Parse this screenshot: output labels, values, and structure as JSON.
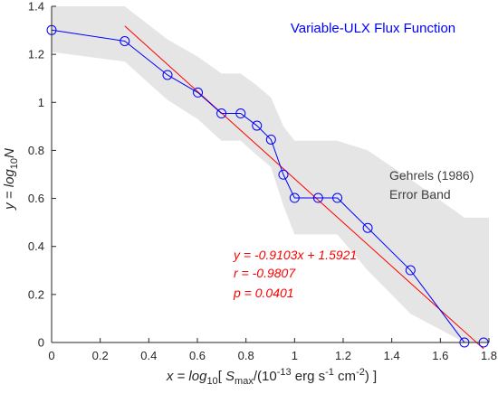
{
  "chart_data": {
    "type": "line",
    "title": "Variable-ULX Flux Function",
    "xlabel": {
      "prefix": "x = log",
      "prefix_sub": "10",
      "bracket_open": "[ ",
      "s": "S",
      "s_sub": "max",
      "mid": "/(10",
      "exp1": "-13",
      "mid2": " erg s",
      "exp2": "-1",
      "mid3": " cm",
      "exp3": "-2",
      "close": ") ]"
    },
    "ylabel": {
      "prefix": "y = log",
      "prefix_sub": "10",
      "var": "N"
    },
    "xlim": [
      0,
      1.8
    ],
    "ylim": [
      0,
      1.4
    ],
    "xticks": [
      0,
      0.2,
      0.4,
      0.6,
      0.8,
      1,
      1.2,
      1.4,
      1.6,
      1.8
    ],
    "xtick_labels": [
      "0",
      "0.2",
      "0.4",
      "0.6",
      "0.8",
      "1",
      "1.2",
      "1.4",
      "1.6",
      "1.8"
    ],
    "yticks": [
      0,
      0.2,
      0.4,
      0.6,
      0.8,
      1,
      1.2,
      1.4
    ],
    "ytick_labels": [
      "0",
      "0.2",
      "0.4",
      "0.6",
      "0.8",
      "1",
      "1.2",
      "1.4"
    ],
    "grid": false,
    "series": [
      {
        "kind": "data",
        "color": "#0000ff",
        "marker": "circle",
        "points": [
          [
            0,
            1.301
          ],
          [
            0.301,
            1.255
          ],
          [
            0.477,
            1.114
          ],
          [
            0.602,
            1.041
          ],
          [
            0.699,
            0.954
          ],
          [
            0.778,
            0.954
          ],
          [
            0.845,
            0.903
          ],
          [
            0.903,
            0.845
          ],
          [
            0.954,
            0.699
          ],
          [
            1.0,
            0.602
          ],
          [
            1.097,
            0.602
          ],
          [
            1.176,
            0.602
          ],
          [
            1.301,
            0.477
          ],
          [
            1.477,
            0.301
          ],
          [
            1.699,
            0.0
          ],
          [
            1.778,
            0.0
          ]
        ]
      },
      {
        "kind": "fit",
        "color": "#ff0000",
        "slope": -0.9103,
        "intercept": 1.5921,
        "x_range": [
          0.301,
          1.778
        ]
      }
    ],
    "error_band": {
      "color": "#e5e5e5",
      "label_lines": [
        "Gehrels (1986)",
        "Error Band"
      ],
      "upper": [
        [
          0,
          1.4
        ],
        [
          0.301,
          1.4
        ],
        [
          0.477,
          1.262
        ],
        [
          0.602,
          1.19
        ],
        [
          0.699,
          1.12
        ],
        [
          0.778,
          1.12
        ],
        [
          0.845,
          1.07
        ],
        [
          0.903,
          1.02
        ],
        [
          0.954,
          0.9
        ],
        [
          1.0,
          0.84
        ],
        [
          1.097,
          0.84
        ],
        [
          1.176,
          0.84
        ],
        [
          1.301,
          0.8
        ],
        [
          1.477,
          0.68
        ],
        [
          1.699,
          0.52
        ],
        [
          1.8,
          0.52
        ]
      ],
      "lower": [
        [
          0,
          1.21
        ],
        [
          0.301,
          1.17
        ],
        [
          0.477,
          1.01
        ],
        [
          0.602,
          0.93
        ],
        [
          0.699,
          0.84
        ],
        [
          0.778,
          0.84
        ],
        [
          0.845,
          0.78
        ],
        [
          0.903,
          0.73
        ],
        [
          0.954,
          0.57
        ],
        [
          1.0,
          0.45
        ],
        [
          1.097,
          0.45
        ],
        [
          1.176,
          0.45
        ],
        [
          1.301,
          0.3
        ],
        [
          1.477,
          0.12
        ],
        [
          1.699,
          0.0
        ],
        [
          1.8,
          0.0
        ]
      ]
    },
    "annotations": {
      "fit_equation": "y = -0.9103x + 1.5921",
      "fit_r": "r = -0.9807",
      "fit_p": "p = 0.0401",
      "color": "#ff0000"
    }
  }
}
